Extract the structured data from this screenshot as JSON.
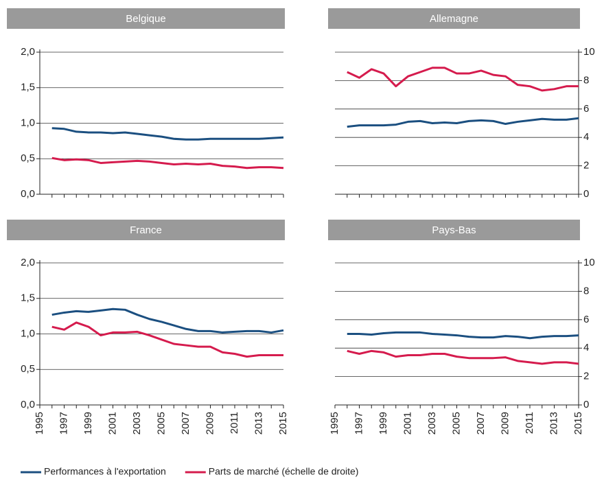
{
  "legend": {
    "series": [
      {
        "name": "Performances à l'exportation",
        "color": "#1b4f80"
      },
      {
        "name": "Parts de marché (échelle de droite)",
        "color": "#d51b4d"
      }
    ]
  },
  "chart_data": [
    {
      "type": "line",
      "title": "Belgique",
      "x": [
        1996,
        1997,
        1998,
        1999,
        2000,
        2001,
        2002,
        2003,
        2004,
        2005,
        2006,
        2007,
        2008,
        2009,
        2010,
        2011,
        2012,
        2013,
        2014,
        2015
      ],
      "xlim": [
        1995,
        2015
      ],
      "ylim": [
        0,
        2
      ],
      "y2lim": [
        0,
        10
      ],
      "yticks": [
        {
          "value": 0,
          "label": "0,0"
        },
        {
          "value": 0.5,
          "label": "0,5"
        },
        {
          "value": 1,
          "label": "1,0"
        },
        {
          "value": 1.5,
          "label": "1,5"
        },
        {
          "value": 2,
          "label": "2,0"
        }
      ],
      "series": [
        {
          "values": [
            0.93,
            0.92,
            0.88,
            0.87,
            0.87,
            0.86,
            0.87,
            0.85,
            0.83,
            0.81,
            0.78,
            0.77,
            0.77,
            0.78,
            0.78,
            0.78,
            0.78,
            0.78,
            0.79,
            0.8
          ]
        },
        {
          "axis": "y2",
          "values": [
            2.55,
            2.4,
            2.45,
            2.4,
            2.2,
            2.25,
            2.3,
            2.35,
            2.3,
            2.2,
            2.1,
            2.15,
            2.1,
            2.15,
            2.0,
            1.95,
            1.85,
            1.9,
            1.9,
            1.85
          ]
        }
      ]
    },
    {
      "type": "line",
      "title": "Allemagne",
      "x": [
        1996,
        1997,
        1998,
        1999,
        2000,
        2001,
        2002,
        2003,
        2004,
        2005,
        2006,
        2007,
        2008,
        2009,
        2010,
        2011,
        2012,
        2013,
        2014,
        2015
      ],
      "xlim": [
        1995,
        2015
      ],
      "ylim": [
        0,
        2
      ],
      "y2lim": [
        0,
        10
      ],
      "y2ticks": [
        0,
        2,
        4,
        6,
        8,
        10
      ],
      "series": [
        {
          "values": [
            0.95,
            0.97,
            0.97,
            0.97,
            0.98,
            1.02,
            1.03,
            1.0,
            1.01,
            1.0,
            1.03,
            1.04,
            1.03,
            0.99,
            1.02,
            1.04,
            1.06,
            1.05,
            1.05,
            1.07
          ]
        },
        {
          "axis": "y2",
          "values": [
            8.6,
            8.2,
            8.8,
            8.5,
            7.6,
            8.3,
            8.6,
            8.9,
            8.9,
            8.5,
            8.5,
            8.7,
            8.4,
            8.3,
            7.7,
            7.6,
            7.3,
            7.4,
            7.6,
            7.6
          ]
        }
      ]
    },
    {
      "type": "line",
      "title": "France",
      "x": [
        1996,
        1997,
        1998,
        1999,
        2000,
        2001,
        2002,
        2003,
        2004,
        2005,
        2006,
        2007,
        2008,
        2009,
        2010,
        2011,
        2012,
        2013,
        2014,
        2015
      ],
      "xlim": [
        1995,
        2015
      ],
      "ylim": [
        0,
        2
      ],
      "y2lim": [
        0,
        10
      ],
      "xticks": [
        1995,
        1997,
        1999,
        2001,
        2003,
        2005,
        2007,
        2009,
        2011,
        2013,
        2015
      ],
      "yticks": [
        {
          "value": 0,
          "label": "0,0"
        },
        {
          "value": 0.5,
          "label": "0,5"
        },
        {
          "value": 1,
          "label": "1,0"
        },
        {
          "value": 1.5,
          "label": "1,5"
        },
        {
          "value": 2,
          "label": "2,0"
        }
      ],
      "series": [
        {
          "values": [
            1.27,
            1.3,
            1.32,
            1.31,
            1.33,
            1.35,
            1.34,
            1.27,
            1.21,
            1.17,
            1.12,
            1.07,
            1.04,
            1.04,
            1.02,
            1.03,
            1.04,
            1.04,
            1.02,
            1.05
          ]
        },
        {
          "axis": "y2",
          "values": [
            5.5,
            5.3,
            5.8,
            5.5,
            4.9,
            5.1,
            5.1,
            5.15,
            4.9,
            4.6,
            4.3,
            4.2,
            4.1,
            4.1,
            3.7,
            3.6,
            3.4,
            3.5,
            3.5,
            3.5
          ]
        }
      ]
    },
    {
      "type": "line",
      "title": "Pays-Bas",
      "x": [
        1996,
        1997,
        1998,
        1999,
        2000,
        2001,
        2002,
        2003,
        2004,
        2005,
        2006,
        2007,
        2008,
        2009,
        2010,
        2011,
        2012,
        2013,
        2014,
        2015
      ],
      "xlim": [
        1995,
        2015
      ],
      "ylim": [
        0,
        2
      ],
      "y2lim": [
        0,
        10
      ],
      "xticks": [
        1995,
        1997,
        1999,
        2001,
        2003,
        2005,
        2007,
        2009,
        2011,
        2013,
        2015
      ],
      "y2ticks": [
        0,
        2,
        4,
        6,
        8,
        10
      ],
      "series": [
        {
          "values": [
            1.0,
            1.0,
            0.99,
            1.01,
            1.02,
            1.02,
            1.02,
            1.0,
            0.99,
            0.98,
            0.96,
            0.95,
            0.95,
            0.97,
            0.96,
            0.94,
            0.96,
            0.97,
            0.97,
            0.98
          ]
        },
        {
          "axis": "y2",
          "values": [
            3.8,
            3.6,
            3.8,
            3.7,
            3.4,
            3.5,
            3.5,
            3.6,
            3.6,
            3.4,
            3.3,
            3.3,
            3.3,
            3.35,
            3.1,
            3.0,
            2.9,
            3.0,
            3.0,
            2.9
          ]
        }
      ]
    }
  ]
}
